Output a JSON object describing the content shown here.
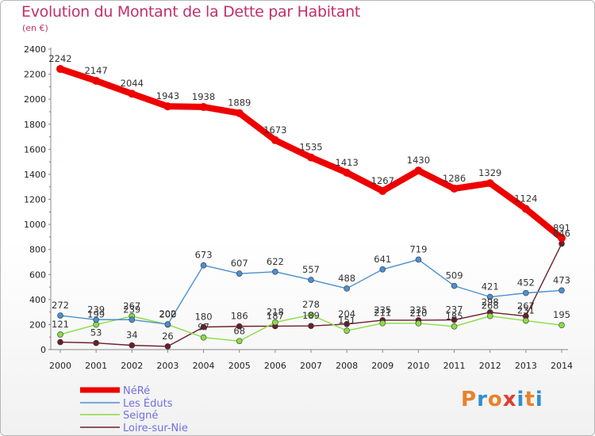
{
  "title": "Evolution du Montant de la Dette par Habitant",
  "subtitle": "(en €)",
  "logo": {
    "text": "Proxiti",
    "colors": [
      "#e8812a",
      "#2f8fcf",
      "#e8812a",
      "#e33b2e",
      "#2f8fcf",
      "#e8812a",
      "#2f8fcf"
    ]
  },
  "chart_data": {
    "type": "line",
    "x": [
      "2000",
      "2001",
      "2002",
      "2003",
      "2004",
      "2005",
      "2006",
      "2007",
      "2008",
      "2009",
      "2010",
      "2011",
      "2012",
      "2013",
      "2014"
    ],
    "ylim": [
      0,
      2400
    ],
    "yticks": [
      0,
      200,
      400,
      600,
      800,
      1000,
      1200,
      1400,
      1600,
      1800,
      2000,
      2200,
      2400
    ],
    "grid": false,
    "legend": "bottom-left",
    "series": [
      {
        "name": "NéRé",
        "color": "#ee0000",
        "values": [
          2242,
          2147,
          2044,
          1943,
          1938,
          1889,
          1673,
          1535,
          1413,
          1267,
          1430,
          1286,
          1329,
          1124,
          891
        ]
      },
      {
        "name": "Les Éduts",
        "color": "#4a90d0",
        "values": [
          272,
          239,
          239,
          202,
          673,
          607,
          622,
          557,
          488,
          641,
          719,
          509,
          421,
          452,
          473
        ]
      },
      {
        "name": "Seigné",
        "color": "#88dd44",
        "values": [
          121,
          199,
          267,
          200,
          97,
          68,
          218,
          278,
          151,
          211,
          210,
          185,
          268,
          231,
          195
        ]
      },
      {
        "name": "Loire-sur-Nie",
        "color": "#6b1e2a",
        "values": [
          60,
          53,
          34,
          26,
          180,
          186,
          187,
          189,
          204,
          235,
          235,
          237,
          298,
          267,
          846
        ]
      }
    ],
    "labels": {
      "NéRé": [
        "2242",
        "2147",
        "2044",
        "1943",
        "1938",
        "1889",
        "1673",
        "1535",
        "1413",
        "1267",
        "1430",
        "1286",
        "1329",
        "1124",
        "891"
      ],
      "Les Éduts": [
        "272",
        "239",
        "239",
        "202",
        "673",
        "607",
        "622",
        "557",
        "488",
        "641",
        "719",
        "509",
        "421",
        "452",
        "473"
      ],
      "Seigné": [
        "121",
        "199",
        "267",
        "200",
        "97",
        "68",
        "218",
        "278",
        "151",
        "211",
        "210",
        "185",
        "268",
        "231",
        "195"
      ],
      "Loire-sur-Nie": [
        "",
        "53",
        "34",
        "26",
        "180",
        "186",
        "187",
        "189",
        "204",
        "235",
        "235",
        "237",
        "298",
        "267",
        "846"
      ]
    }
  }
}
